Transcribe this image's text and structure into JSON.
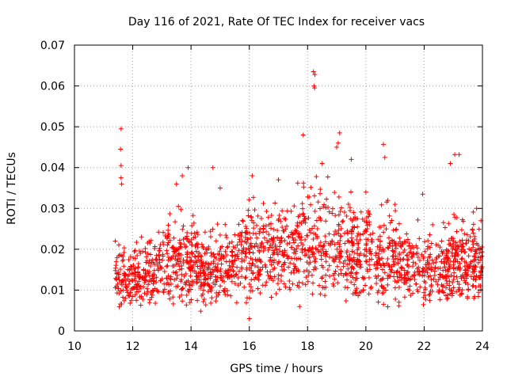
{
  "chart_data": {
    "type": "scatter",
    "title": "Day 116 of 2021, Rate Of TEC Index for receiver vacs",
    "xlabel": "GPS time / hours",
    "ylabel": "ROTI / TECUs",
    "xlim": [
      10,
      24
    ],
    "ylim": [
      0,
      0.07
    ],
    "xticks": [
      10,
      12,
      14,
      16,
      18,
      20,
      22,
      24
    ],
    "yticks": [
      0,
      0.01,
      0.02,
      0.03,
      0.04,
      0.05,
      0.06,
      0.07
    ],
    "xtick_labels": [
      "10",
      "12",
      "14",
      "16",
      "18",
      "20",
      "22",
      "24"
    ],
    "ytick_labels": [
      "0",
      "0.01",
      "0.02",
      "0.03",
      "0.04",
      "0.05",
      "0.06",
      "0.07"
    ],
    "grid": true,
    "marker": "+",
    "color": "#ff0000",
    "data_x_range": [
      11.4,
      24
    ],
    "series": [
      {
        "name": "ROTI",
        "points": [
          [
            11.6,
            0.0495
          ],
          [
            11.58,
            0.0445
          ],
          [
            11.6,
            0.0405
          ],
          [
            11.6,
            0.0375
          ],
          [
            11.62,
            0.036
          ],
          [
            18.2,
            0.0635
          ],
          [
            18.25,
            0.0628
          ],
          [
            18.22,
            0.06
          ],
          [
            18.24,
            0.0595
          ],
          [
            19.1,
            0.0485
          ],
          [
            19.05,
            0.046
          ],
          [
            19.0,
            0.045
          ],
          [
            17.85,
            0.048
          ],
          [
            20.6,
            0.0457
          ],
          [
            20.65,
            0.0425
          ],
          [
            23.05,
            0.0432
          ],
          [
            23.2,
            0.0432
          ],
          [
            14.75,
            0.04
          ],
          [
            13.9,
            0.04
          ],
          [
            13.7,
            0.038
          ],
          [
            16.1,
            0.038
          ],
          [
            16.0,
            0.003
          ],
          [
            12.3,
            0.023
          ],
          [
            11.4,
            0.022
          ],
          [
            21.95,
            0.0335
          ],
          [
            13.5,
            0.036
          ],
          [
            15.0,
            0.035
          ],
          [
            17.0,
            0.037
          ],
          [
            18.5,
            0.041
          ],
          [
            19.5,
            0.042
          ],
          [
            20.0,
            0.034
          ],
          [
            21.0,
            0.031
          ],
          [
            22.9,
            0.041
          ],
          [
            23.8,
            0.03
          ],
          [
            23.95,
            0.027
          ]
        ]
      }
    ],
    "density_profile": {
      "x": [
        11.4,
        11.5,
        12.0,
        12.5,
        13.0,
        13.5,
        14.0,
        14.5,
        15.0,
        15.5,
        16.0,
        16.5,
        17.0,
        17.5,
        18.0,
        18.5,
        19.0,
        19.5,
        20.0,
        20.5,
        21.0,
        21.5,
        22.0,
        22.5,
        23.0,
        23.5,
        24.0
      ],
      "low": [
        0.006,
        0.004,
        0.005,
        0.005,
        0.004,
        0.004,
        0.004,
        0.004,
        0.004,
        0.005,
        0.005,
        0.006,
        0.006,
        0.005,
        0.005,
        0.005,
        0.005,
        0.005,
        0.005,
        0.005,
        0.005,
        0.005,
        0.004,
        0.004,
        0.004,
        0.004,
        0.004
      ],
      "high": [
        0.02,
        0.02,
        0.019,
        0.022,
        0.026,
        0.028,
        0.028,
        0.024,
        0.025,
        0.027,
        0.031,
        0.033,
        0.032,
        0.033,
        0.035,
        0.035,
        0.036,
        0.032,
        0.029,
        0.03,
        0.028,
        0.025,
        0.024,
        0.025,
        0.028,
        0.028,
        0.025
      ],
      "count": 1900
    }
  }
}
